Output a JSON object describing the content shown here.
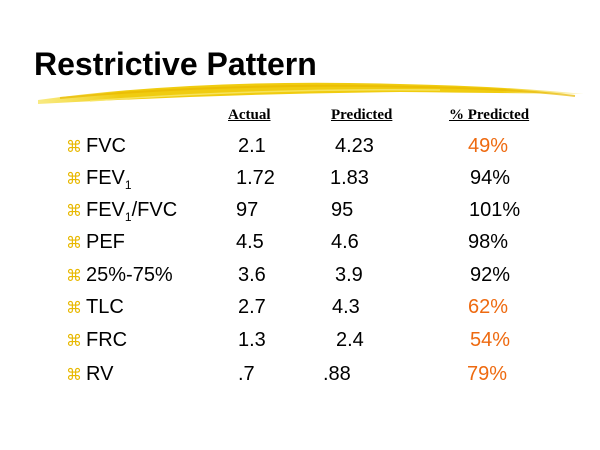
{
  "slide": {
    "title": "Restrictive Pattern",
    "bullet_icon": "z-bullet-icon",
    "accent_color": "#ee6a10",
    "swoosh_color": "#f0d020"
  },
  "headers": {
    "actual": "Actual",
    "predicted": "Predicted",
    "percent": "% Predicted"
  },
  "rows": [
    {
      "label": "FVC",
      "sub": "",
      "suffix": "",
      "actual": "2.1",
      "predicted": "4.23",
      "percent": "49%",
      "highlight": true
    },
    {
      "label": "FEV",
      "sub": "1",
      "suffix": "",
      "actual": "1.72",
      "predicted": "1.83",
      "percent": "94%",
      "highlight": false
    },
    {
      "label": "FEV",
      "sub": "1",
      "suffix": "/FVC",
      "actual": "97",
      "predicted": "95",
      "percent": "101%",
      "highlight": false
    },
    {
      "label": "PEF",
      "sub": "",
      "suffix": "",
      "actual": "4.5",
      "predicted": "4.6",
      "percent": "98%",
      "highlight": false
    },
    {
      "label": "25%-75%",
      "sub": "",
      "suffix": "",
      "actual": "3.6",
      "predicted": "3.9",
      "percent": "92%",
      "highlight": false
    },
    {
      "label": "TLC",
      "sub": "",
      "suffix": "",
      "actual": "2.7",
      "predicted": "4.3",
      "percent": "62%",
      "highlight": true
    },
    {
      "label": "FRC",
      "sub": "",
      "suffix": "",
      "actual": "1.3",
      "predicted": "2.4",
      "percent": "54%",
      "highlight": true
    },
    {
      "label": "RV",
      "sub": "",
      "suffix": "",
      "actual": ".7",
      "predicted": ".88",
      "percent": "79%",
      "highlight": true
    }
  ]
}
